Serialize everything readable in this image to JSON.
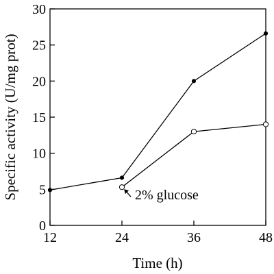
{
  "chart_data": {
    "type": "line",
    "xlabel": "Time (h)",
    "ylabel": "Specific activity (U/mg prot)",
    "xlim": [
      12,
      48
    ],
    "ylim": [
      0,
      30
    ],
    "x_ticks": [
      "12",
      "24",
      "36",
      "48"
    ],
    "y_ticks": [
      "0",
      "5",
      "10",
      "15",
      "20",
      "25",
      "30"
    ],
    "grid": false,
    "series": [
      {
        "marker": "filled-circle",
        "color": "#000000",
        "x": [
          12,
          24,
          36,
          48
        ],
        "y": [
          4.9,
          6.6,
          20.0,
          26.6
        ]
      },
      {
        "marker": "open-circle",
        "color": "#000000",
        "x": [
          24,
          36,
          48
        ],
        "y": [
          5.3,
          13.0,
          14.0
        ]
      }
    ],
    "annotations": [
      {
        "text": "2% glucose",
        "x": 24,
        "y": 5.3
      }
    ]
  }
}
